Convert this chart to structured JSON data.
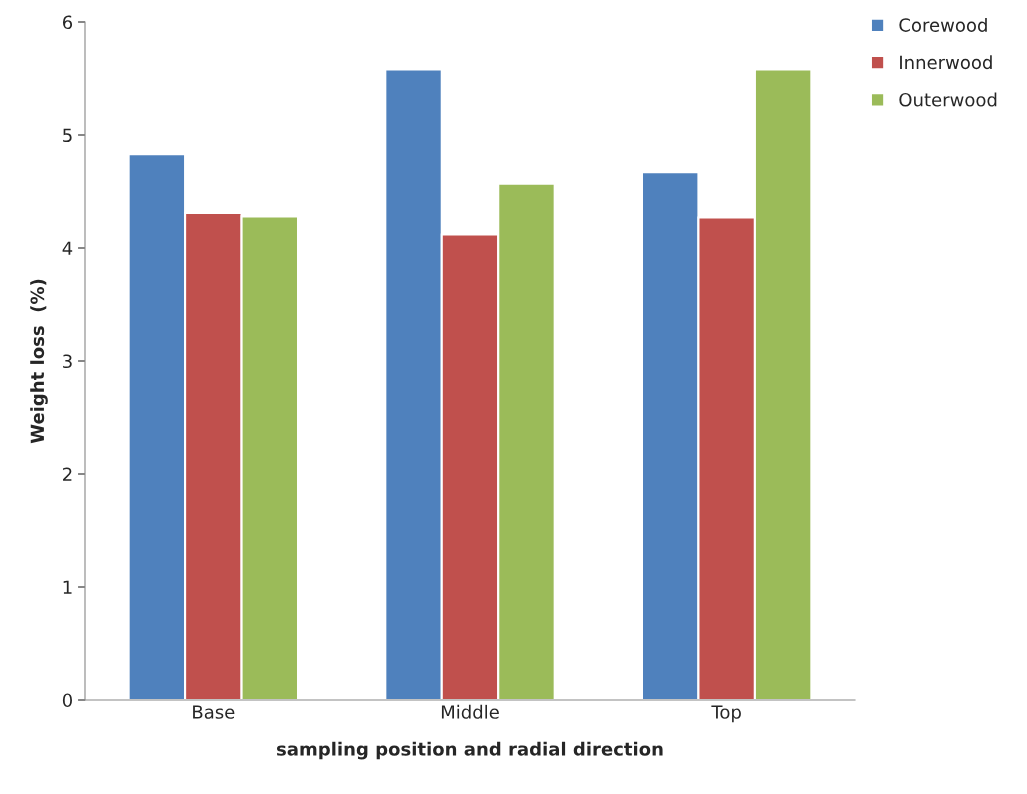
{
  "chart_data": {
    "type": "bar",
    "xlabel": "sampling position and radial direction",
    "ylabel": "Weight loss  (%)",
    "categories": [
      "Base",
      "Middle",
      "Top"
    ],
    "series": [
      {
        "name": "Corewood",
        "color": "#4f81bd",
        "values": [
          4.83,
          5.58,
          4.67
        ]
      },
      {
        "name": "Innerwood",
        "color": "#c0504d",
        "values": [
          4.31,
          4.12,
          4.27
        ]
      },
      {
        "name": "Outerwood",
        "color": "#9bbb59",
        "values": [
          4.28,
          4.57,
          5.58
        ]
      }
    ],
    "ylim": [
      0,
      6
    ],
    "yticks": [
      0,
      1,
      2,
      3,
      4,
      5,
      6
    ],
    "grid": false,
    "legend": "top right"
  }
}
